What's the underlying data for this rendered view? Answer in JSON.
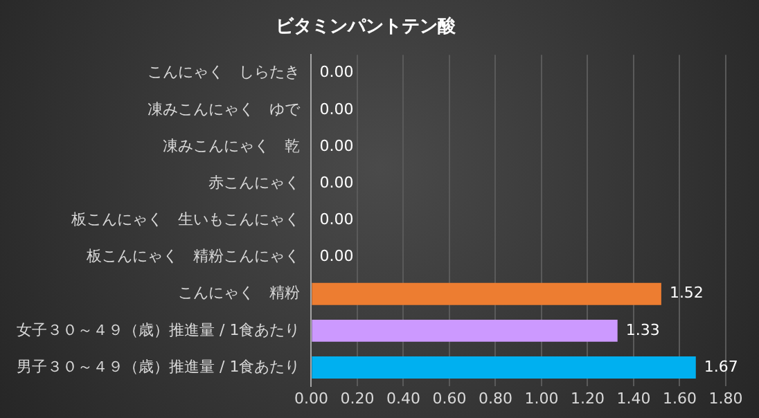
{
  "chart_data": {
    "type": "bar",
    "orientation": "horizontal",
    "title": "ビタミンパントテン酸",
    "categories": [
      "こんにゃく　しらたき",
      "凍みこんにゃく　ゆで",
      "凍みこんにゃく　乾",
      "赤こんにゃく",
      "板こんにゃく　生いもこんにゃく",
      "板こんにゃく　精粉こんにゃく",
      "こんにゃく　精粉",
      "女子３０～４９（歳）推進量 / 1食あたり",
      "男子３０～４９（歳）推進量 / 1食あたり"
    ],
    "values": [
      0,
      0,
      0,
      0,
      0,
      0,
      1.52,
      1.33,
      1.67
    ],
    "colors": [
      "#ed7d31",
      "#ed7d31",
      "#ed7d31",
      "#ed7d31",
      "#ed7d31",
      "#ed7d31",
      "#ed7d31",
      "#cc99ff",
      "#00b0f0"
    ],
    "value_labels": [
      "0.00",
      "0.00",
      "0.00",
      "0.00",
      "0.00",
      "0.00",
      "1.52",
      "1.33",
      "1.67"
    ],
    "xlim": [
      0,
      1.8
    ],
    "xticks": [
      {
        "value": 0,
        "label": "0.00"
      },
      {
        "value": 0.2,
        "label": "0.20"
      },
      {
        "value": 0.4,
        "label": "0.40"
      },
      {
        "value": 0.6,
        "label": "0.60"
      },
      {
        "value": 0.8,
        "label": "0.80"
      },
      {
        "value": 1,
        "label": "1.00"
      },
      {
        "value": 1.2,
        "label": "1.20"
      },
      {
        "value": 1.4,
        "label": "1.40"
      },
      {
        "value": 1.6,
        "label": "1.60"
      },
      {
        "value": 1.8,
        "label": "1.80"
      }
    ],
    "grid": "x",
    "legend": false
  }
}
